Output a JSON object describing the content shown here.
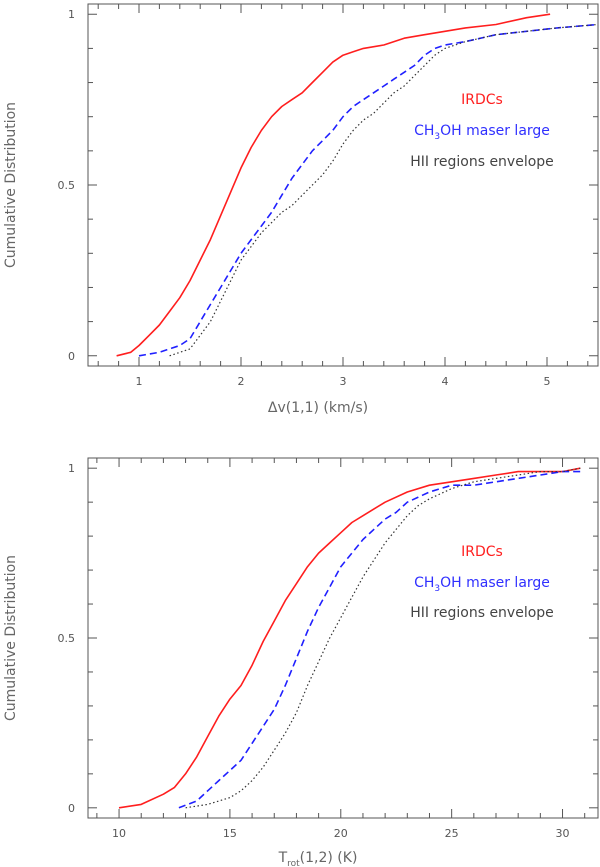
{
  "chart_data": [
    {
      "type": "line",
      "xlabel": "Δv(1,1) (km/s)",
      "ylabel": "Cumulative Distribution",
      "xlim": [
        0.5,
        5.5
      ],
      "ylim": [
        -0.03,
        1.03
      ],
      "xticks": [
        1,
        2,
        3,
        4,
        5
      ],
      "xtick_labels": [
        "1",
        "2",
        "3",
        "4",
        "5"
      ],
      "yticks": [
        0,
        0.5,
        1
      ],
      "ytick_labels": [
        "0",
        "0.5",
        "1"
      ],
      "legend": {
        "placement": "right",
        "entries": [
          {
            "label": "IRDCs",
            "color": "#ff2020"
          },
          {
            "label": "CH",
            "sub": "3",
            "label_tail": "OH maser large",
            "color": "#3030ff"
          },
          {
            "label": "HII regions envelope",
            "color": "#444444"
          }
        ]
      },
      "series": [
        {
          "name": "IRDCs",
          "color": "#ff1e1e",
          "dash": "solid",
          "x": [
            0.78,
            0.92,
            1.0,
            1.1,
            1.2,
            1.3,
            1.4,
            1.5,
            1.6,
            1.7,
            1.8,
            1.9,
            2.0,
            2.1,
            2.2,
            2.3,
            2.4,
            2.5,
            2.6,
            2.7,
            2.8,
            2.9,
            3.0,
            3.1,
            3.2,
            3.4,
            3.6,
            3.8,
            4.0,
            4.2,
            4.5,
            4.8,
            5.03
          ],
          "y": [
            0.0,
            0.01,
            0.03,
            0.06,
            0.09,
            0.13,
            0.17,
            0.22,
            0.28,
            0.34,
            0.41,
            0.48,
            0.55,
            0.61,
            0.66,
            0.7,
            0.73,
            0.75,
            0.77,
            0.8,
            0.83,
            0.86,
            0.88,
            0.89,
            0.9,
            0.91,
            0.93,
            0.94,
            0.95,
            0.96,
            0.97,
            0.99,
            1.0
          ]
        },
        {
          "name": "CH3OH maser large",
          "color": "#2020ff",
          "dash": "dashed",
          "x": [
            1.0,
            1.2,
            1.4,
            1.5,
            1.6,
            1.7,
            1.8,
            1.9,
            2.0,
            2.1,
            2.2,
            2.3,
            2.4,
            2.5,
            2.6,
            2.7,
            2.8,
            2.9,
            3.0,
            3.1,
            3.2,
            3.3,
            3.4,
            3.5,
            3.6,
            3.7,
            3.8,
            3.9,
            4.0,
            4.2,
            4.5,
            4.8,
            5.1,
            5.5
          ],
          "y": [
            0.0,
            0.01,
            0.03,
            0.05,
            0.1,
            0.15,
            0.2,
            0.25,
            0.3,
            0.34,
            0.38,
            0.42,
            0.47,
            0.52,
            0.56,
            0.6,
            0.63,
            0.66,
            0.7,
            0.73,
            0.75,
            0.77,
            0.79,
            0.81,
            0.83,
            0.85,
            0.88,
            0.9,
            0.91,
            0.92,
            0.94,
            0.95,
            0.96,
            0.97
          ]
        },
        {
          "name": "HII regions envelope",
          "color": "#333333",
          "dash": "dotted",
          "x": [
            1.3,
            1.5,
            1.6,
            1.7,
            1.8,
            1.9,
            2.0,
            2.1,
            2.2,
            2.3,
            2.4,
            2.5,
            2.6,
            2.7,
            2.8,
            2.9,
            3.0,
            3.1,
            3.2,
            3.3,
            3.4,
            3.5,
            3.6,
            3.7,
            3.8,
            3.9,
            4.0,
            4.2,
            4.5,
            4.8,
            5.1,
            5.5
          ],
          "y": [
            0.0,
            0.02,
            0.06,
            0.1,
            0.16,
            0.22,
            0.28,
            0.32,
            0.36,
            0.39,
            0.42,
            0.44,
            0.47,
            0.5,
            0.53,
            0.57,
            0.62,
            0.66,
            0.69,
            0.71,
            0.74,
            0.77,
            0.79,
            0.82,
            0.85,
            0.88,
            0.9,
            0.92,
            0.94,
            0.95,
            0.96,
            0.97
          ]
        }
      ]
    },
    {
      "type": "line",
      "xlabel": "T",
      "xlabel_sub": "rot",
      "xlabel_tail": "(1,2) (K)",
      "ylabel": "Cumulative Distribution",
      "xlim": [
        8.6,
        31.6
      ],
      "ylim": [
        -0.03,
        1.03
      ],
      "xticks": [
        10,
        15,
        20,
        25,
        30
      ],
      "xtick_labels": [
        "10",
        "15",
        "20",
        "25",
        "30"
      ],
      "yticks": [
        0,
        0.5,
        1
      ],
      "ytick_labels": [
        "0",
        "0.5",
        "1"
      ],
      "legend": {
        "placement": "right",
        "entries": [
          {
            "label": "IRDCs",
            "color": "#ff2020"
          },
          {
            "label": "CH",
            "sub": "3",
            "label_tail": "OH maser large",
            "color": "#3030ff"
          },
          {
            "label": "HII regions envelope",
            "color": "#444444"
          }
        ]
      },
      "series": [
        {
          "name": "IRDCs",
          "color": "#ff1e1e",
          "dash": "solid",
          "x": [
            10.0,
            11.0,
            12.0,
            12.5,
            13.0,
            13.5,
            14.0,
            14.5,
            15.0,
            15.5,
            16.0,
            16.5,
            17.0,
            17.5,
            18.0,
            18.5,
            19.0,
            19.5,
            20.0,
            20.5,
            21.0,
            21.5,
            22.0,
            23.0,
            24.0,
            25.0,
            26.0,
            27.0,
            28.0,
            29.0,
            30.0,
            30.8
          ],
          "y": [
            0.0,
            0.01,
            0.04,
            0.06,
            0.1,
            0.15,
            0.21,
            0.27,
            0.32,
            0.36,
            0.42,
            0.49,
            0.55,
            0.61,
            0.66,
            0.71,
            0.75,
            0.78,
            0.81,
            0.84,
            0.86,
            0.88,
            0.9,
            0.93,
            0.95,
            0.96,
            0.97,
            0.98,
            0.99,
            0.99,
            0.99,
            1.0
          ]
        },
        {
          "name": "CH3OH maser large",
          "color": "#2020ff",
          "dash": "dashed",
          "x": [
            12.7,
            13.5,
            14.0,
            14.5,
            15.0,
            15.5,
            16.0,
            16.5,
            17.0,
            17.5,
            18.0,
            18.5,
            19.0,
            19.5,
            20.0,
            20.5,
            21.0,
            21.5,
            22.0,
            22.5,
            23.0,
            24.0,
            25.0,
            26.0,
            27.0,
            28.0,
            29.0,
            30.0,
            30.8
          ],
          "y": [
            0.0,
            0.02,
            0.05,
            0.08,
            0.11,
            0.14,
            0.19,
            0.24,
            0.29,
            0.36,
            0.44,
            0.52,
            0.59,
            0.65,
            0.71,
            0.75,
            0.79,
            0.82,
            0.85,
            0.87,
            0.9,
            0.93,
            0.95,
            0.95,
            0.96,
            0.97,
            0.98,
            0.99,
            0.99
          ]
        },
        {
          "name": "HII regions envelope",
          "color": "#333333",
          "dash": "dotted",
          "x": [
            13.0,
            14.0,
            15.0,
            15.5,
            16.0,
            16.5,
            17.0,
            17.5,
            18.0,
            18.5,
            19.0,
            19.5,
            20.0,
            20.5,
            21.0,
            21.5,
            22.0,
            22.5,
            23.0,
            23.5,
            24.0,
            25.0,
            26.0,
            27.0,
            28.0,
            29.0,
            30.0,
            30.8
          ],
          "y": [
            0.0,
            0.01,
            0.03,
            0.05,
            0.08,
            0.12,
            0.17,
            0.22,
            0.28,
            0.36,
            0.43,
            0.5,
            0.56,
            0.62,
            0.68,
            0.73,
            0.78,
            0.82,
            0.86,
            0.89,
            0.91,
            0.94,
            0.96,
            0.97,
            0.98,
            0.99,
            0.99,
            1.0
          ]
        }
      ]
    }
  ]
}
